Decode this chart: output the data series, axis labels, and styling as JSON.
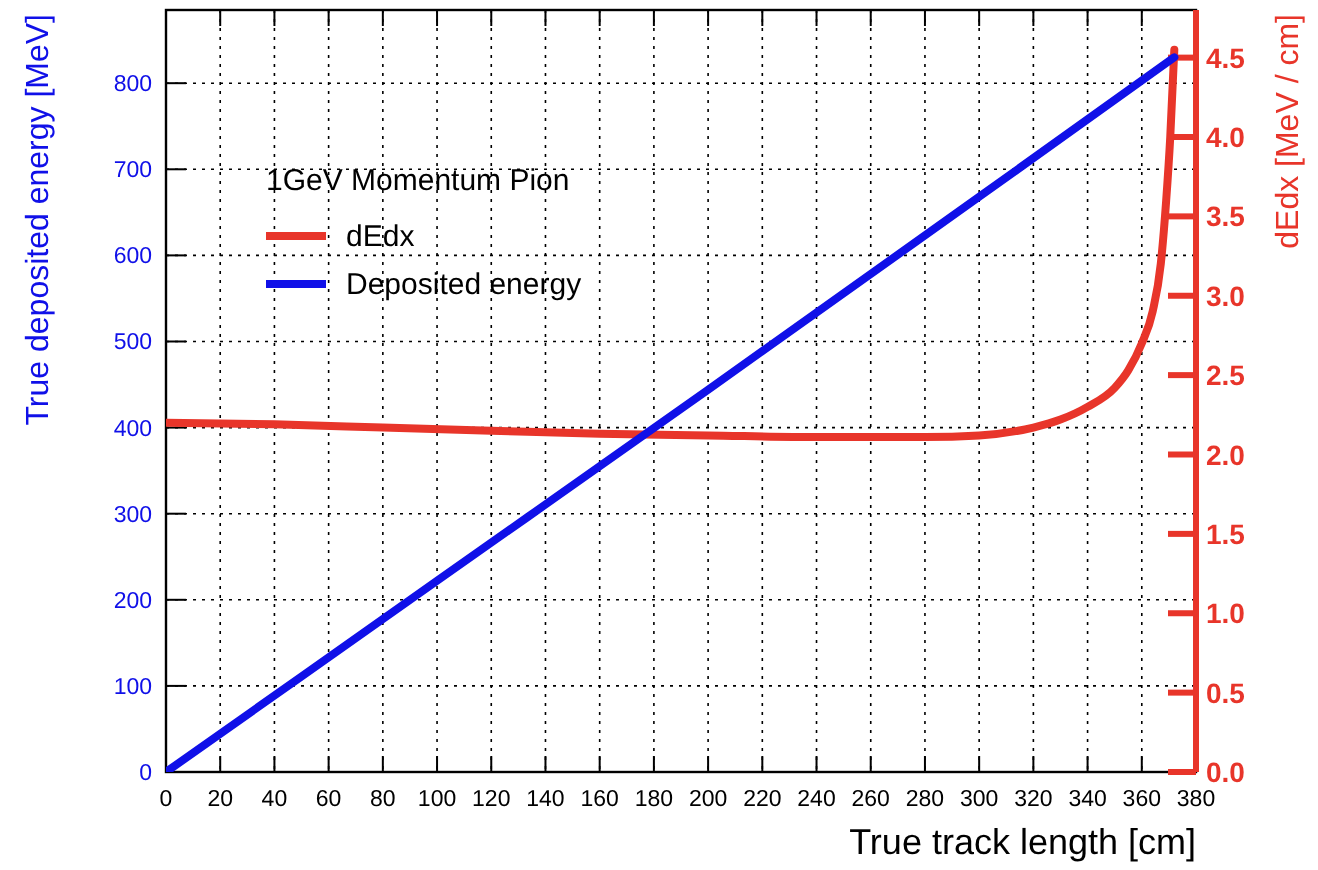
{
  "chart_data": {
    "type": "line",
    "xlabel": "True track length [cm]",
    "ylabel": "True deposited energy [MeV]",
    "y2label": "dEdx [MeV / cm]",
    "legend_title": "1GeV Momentum Pion",
    "legend": "top left",
    "grid": true,
    "line_style": "solid",
    "xlim": [
      0,
      380
    ],
    "xticks": [
      0,
      20,
      40,
      60,
      80,
      100,
      120,
      140,
      160,
      180,
      200,
      220,
      240,
      260,
      280,
      300,
      320,
      340,
      360,
      380
    ],
    "ylim": [
      0,
      885
    ],
    "yticks": [
      0,
      100,
      200,
      300,
      400,
      500,
      600,
      700,
      800
    ],
    "y2lim": [
      0,
      4.8
    ],
    "y2ticks": [
      {
        "value": 0,
        "label": "0.0"
      },
      {
        "value": 0.5,
        "label": "0.5"
      },
      {
        "value": 1,
        "label": "1.0"
      },
      {
        "value": 1.5,
        "label": "1.5"
      },
      {
        "value": 2,
        "label": "2.0"
      },
      {
        "value": 2.5,
        "label": "2.5"
      },
      {
        "value": 3,
        "label": "3.0"
      },
      {
        "value": 3.5,
        "label": "3.5"
      },
      {
        "value": 4,
        "label": "4.0"
      },
      {
        "value": 4.5,
        "label": "4.5"
      }
    ],
    "series": [
      {
        "name": "dEdx",
        "color": "#e8352a",
        "axis": "y2",
        "x": [
          0,
          40,
          80,
          120,
          160,
          200,
          240,
          280,
          300,
          320,
          330,
          340,
          350,
          355,
          360,
          364,
          367,
          369,
          370.5,
          372
        ],
        "values": [
          2.2,
          2.19,
          2.17,
          2.15,
          2.13,
          2.12,
          2.11,
          2.11,
          2.12,
          2.17,
          2.22,
          2.3,
          2.42,
          2.53,
          2.7,
          2.9,
          3.2,
          3.6,
          4.0,
          4.55
        ]
      },
      {
        "name": "Deposited energy",
        "color": "#1010e8",
        "x": [
          0,
          100,
          200,
          300,
          372
        ],
        "values": [
          0,
          222,
          444,
          668,
          830
        ]
      }
    ]
  }
}
